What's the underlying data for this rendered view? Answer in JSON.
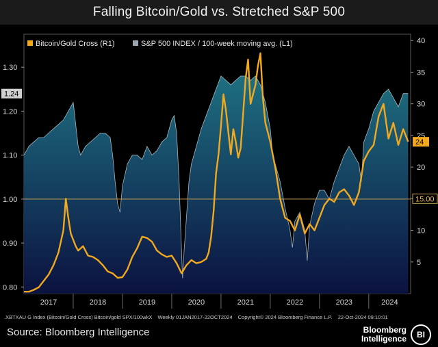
{
  "title": "Falling Bitcoin/Gold vs. Stretched S&P 500",
  "source": "Source: Bloomberg Intelligence",
  "brand": {
    "line1": "Bloomberg",
    "line2": "Intelligence",
    "badge": "BI"
  },
  "footer": {
    "ticker_info": ".XBTXAU G Index (Bitcoin/Gold Cross) Bitcoin/gold SPX/100wkX",
    "range": "Weekly 01JAN2017-22OCT2024",
    "copyright": "Copyright© 2024 Bloomberg Finance L.P.",
    "stamp": "22-Oct-2024 09:10:01"
  },
  "colors": {
    "bitcoin_gold": "#f2a91f",
    "spx_fill_top": "#1e6f80",
    "spx_fill_bottom": "#0b1240",
    "spx_line": "#cfd8e0",
    "refline": "#c8a050"
  },
  "chart_data": {
    "type": "line",
    "legend": [
      {
        "label": "Bitcoin/Gold Cross (R1)",
        "color": "#f2a91f"
      },
      {
        "label": "S&P 500 INDEX / 100-week moving avg. (L1)",
        "color": "#9aa5ad"
      }
    ],
    "x_ticks": [
      "2017",
      "2018",
      "2019",
      "2020",
      "2021",
      "2022",
      "2023",
      "2024"
    ],
    "xlim": [
      2017.0,
      2024.85
    ],
    "left_axis": {
      "ticks": [
        "0.80",
        "0.90",
        "1.00",
        "1.10",
        "1.20",
        "1.30"
      ],
      "ylim": [
        0.785,
        1.375
      ],
      "last_value_label": "1.24",
      "ref_line": 1.0
    },
    "right_axis": {
      "ticks": [
        "5",
        "10",
        "15.00",
        "20",
        "25",
        "30",
        "35",
        "40"
      ],
      "ylim": [
        0,
        41
      ],
      "last_value_label": "24",
      "ref_label": "15.00"
    },
    "series": [
      {
        "name": "S&P 500 INDEX / 100-week moving avg.",
        "axis": "left",
        "x": [
          2017.0,
          2017.05,
          2017.1,
          2017.2,
          2017.3,
          2017.4,
          2017.5,
          2017.6,
          2017.7,
          2017.8,
          2017.9,
          2018.0,
          2018.05,
          2018.1,
          2018.15,
          2018.25,
          2018.35,
          2018.45,
          2018.55,
          2018.65,
          2018.75,
          2018.8,
          2018.85,
          2018.9,
          2018.95,
          2019.0,
          2019.1,
          2019.2,
          2019.3,
          2019.4,
          2019.5,
          2019.6,
          2019.7,
          2019.8,
          2019.9,
          2020.0,
          2020.05,
          2020.1,
          2020.15,
          2020.2,
          2020.22,
          2020.25,
          2020.3,
          2020.35,
          2020.4,
          2020.5,
          2020.6,
          2020.7,
          2020.8,
          2020.9,
          2021.0,
          2021.1,
          2021.2,
          2021.3,
          2021.4,
          2021.5,
          2021.6,
          2021.7,
          2021.8,
          2021.9,
          2022.0,
          2022.05,
          2022.1,
          2022.2,
          2022.3,
          2022.4,
          2022.45,
          2022.5,
          2022.6,
          2022.7,
          2022.75,
          2022.8,
          2022.9,
          2023.0,
          2023.1,
          2023.2,
          2023.3,
          2023.4,
          2023.5,
          2023.6,
          2023.7,
          2023.8,
          2023.85,
          2023.9,
          2024.0,
          2024.1,
          2024.2,
          2024.3,
          2024.4,
          2024.5,
          2024.6,
          2024.7,
          2024.8
        ],
        "y": [
          1.1,
          1.11,
          1.12,
          1.13,
          1.14,
          1.14,
          1.15,
          1.16,
          1.17,
          1.18,
          1.2,
          1.22,
          1.17,
          1.12,
          1.1,
          1.12,
          1.13,
          1.14,
          1.15,
          1.15,
          1.14,
          1.1,
          1.04,
          0.99,
          0.97,
          1.03,
          1.08,
          1.1,
          1.1,
          1.09,
          1.12,
          1.1,
          1.11,
          1.13,
          1.14,
          1.18,
          1.19,
          1.15,
          1.04,
          0.88,
          0.82,
          0.88,
          0.96,
          1.04,
          1.08,
          1.12,
          1.16,
          1.19,
          1.22,
          1.25,
          1.28,
          1.27,
          1.26,
          1.27,
          1.28,
          1.28,
          1.27,
          1.28,
          1.26,
          1.22,
          1.16,
          1.1,
          1.08,
          1.04,
          0.98,
          0.93,
          0.89,
          0.95,
          0.97,
          0.93,
          0.86,
          0.94,
          0.99,
          1.02,
          1.02,
          1.0,
          1.04,
          1.07,
          1.1,
          1.12,
          1.1,
          1.08,
          1.04,
          1.13,
          1.16,
          1.2,
          1.22,
          1.24,
          1.25,
          1.23,
          1.21,
          1.24,
          1.24
        ]
      },
      {
        "name": "Bitcoin/Gold Cross",
        "axis": "right",
        "x": [
          2017.0,
          2017.1,
          2017.2,
          2017.3,
          2017.4,
          2017.5,
          2017.6,
          2017.7,
          2017.8,
          2017.85,
          2017.9,
          2017.95,
          2018.0,
          2018.05,
          2018.1,
          2018.2,
          2018.3,
          2018.4,
          2018.5,
          2018.6,
          2018.7,
          2018.8,
          2018.9,
          2019.0,
          2019.1,
          2019.2,
          2019.3,
          2019.4,
          2019.5,
          2019.6,
          2019.7,
          2019.8,
          2019.9,
          2020.0,
          2020.1,
          2020.2,
          2020.3,
          2020.4,
          2020.5,
          2020.6,
          2020.7,
          2020.75,
          2020.8,
          2020.85,
          2020.9,
          2020.95,
          2021.0,
          2021.05,
          2021.1,
          2021.2,
          2021.25,
          2021.3,
          2021.35,
          2021.4,
          2021.5,
          2021.55,
          2021.6,
          2021.7,
          2021.75,
          2021.8,
          2021.85,
          2021.9,
          2022.0,
          2022.1,
          2022.2,
          2022.3,
          2022.4,
          2022.5,
          2022.6,
          2022.7,
          2022.8,
          2022.9,
          2023.0,
          2023.1,
          2023.2,
          2023.3,
          2023.4,
          2023.5,
          2023.6,
          2023.7,
          2023.8,
          2023.9,
          2024.0,
          2024.1,
          2024.2,
          2024.3,
          2024.4,
          2024.5,
          2024.6,
          2024.7,
          2024.8
        ],
        "y": [
          0.3,
          0.3,
          0.6,
          1.0,
          2.0,
          3.0,
          4.5,
          6.5,
          10.0,
          15.0,
          12.0,
          9.5,
          8.5,
          7.5,
          6.8,
          7.5,
          6.0,
          5.8,
          5.3,
          4.5,
          3.5,
          3.2,
          2.5,
          2.6,
          3.8,
          5.8,
          7.2,
          9.0,
          8.8,
          8.2,
          6.8,
          6.2,
          5.8,
          6.0,
          4.8,
          3.2,
          4.5,
          5.3,
          4.8,
          5.0,
          5.5,
          6.5,
          9.0,
          13.0,
          19.0,
          22.0,
          26.5,
          31.5,
          29.0,
          22.0,
          26.0,
          24.0,
          21.5,
          23.0,
          34.0,
          37.0,
          30.0,
          33.0,
          36.0,
          38.0,
          31.0,
          27.0,
          24.0,
          20.0,
          15.0,
          12.0,
          11.5,
          10.0,
          12.5,
          9.5,
          11.0,
          10.0,
          12.0,
          14.0,
          15.0,
          14.5,
          16.0,
          16.5,
          15.5,
          14.0,
          16.0,
          21.0,
          22.5,
          23.5,
          28.0,
          30.0,
          24.5,
          27.0,
          23.5,
          26.0,
          24.0
        ]
      }
    ]
  }
}
